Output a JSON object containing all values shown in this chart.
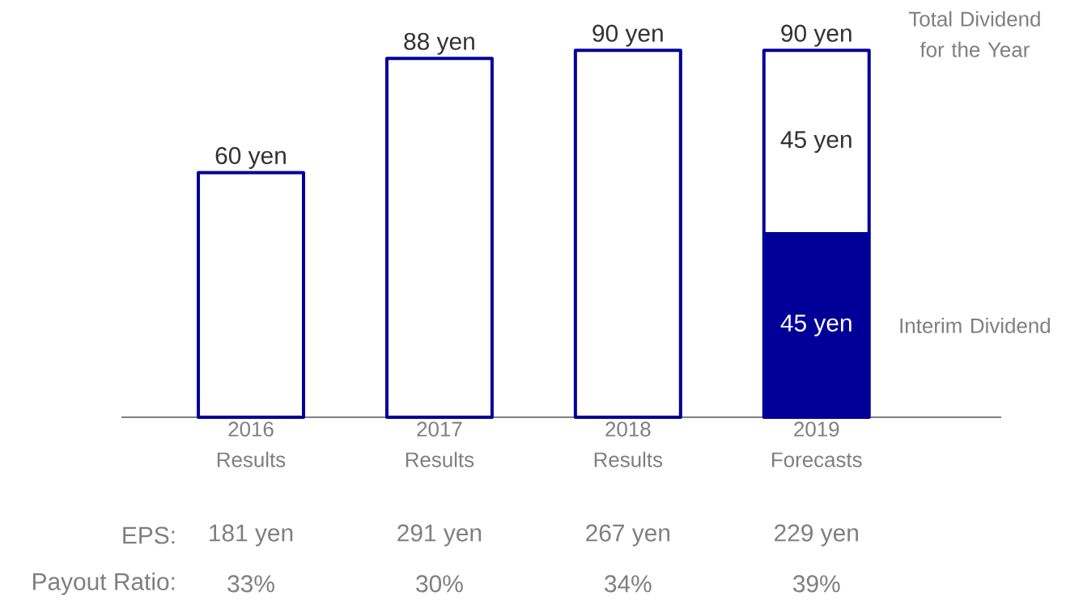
{
  "chart_data": {
    "type": "bar",
    "stacked": true,
    "categories": [
      "2016 Results",
      "2017 Results",
      "2018 Results",
      "2019 Forecasts"
    ],
    "series": [
      {
        "name": "Interim Dividend",
        "color": "#000099",
        "values": [
          null,
          null,
          null,
          45
        ],
        "value_labels": [
          null,
          null,
          null,
          "45 yen"
        ]
      },
      {
        "name": "Total Dividend for the Year",
        "color": "#ffffff",
        "values": [
          60,
          88,
          90,
          45
        ],
        "value_labels": [
          "60 yen",
          "88 yen",
          "90 yen",
          "45 yen"
        ]
      }
    ],
    "totals": [
      null,
      null,
      null,
      "90 yen"
    ],
    "annotations": [
      "EPS:",
      "181 yen",
      "291 yen",
      "267 yen",
      "229 yen",
      "Payout Ratio:",
      "33%",
      "30%",
      "34%",
      "39%"
    ]
  }
}
